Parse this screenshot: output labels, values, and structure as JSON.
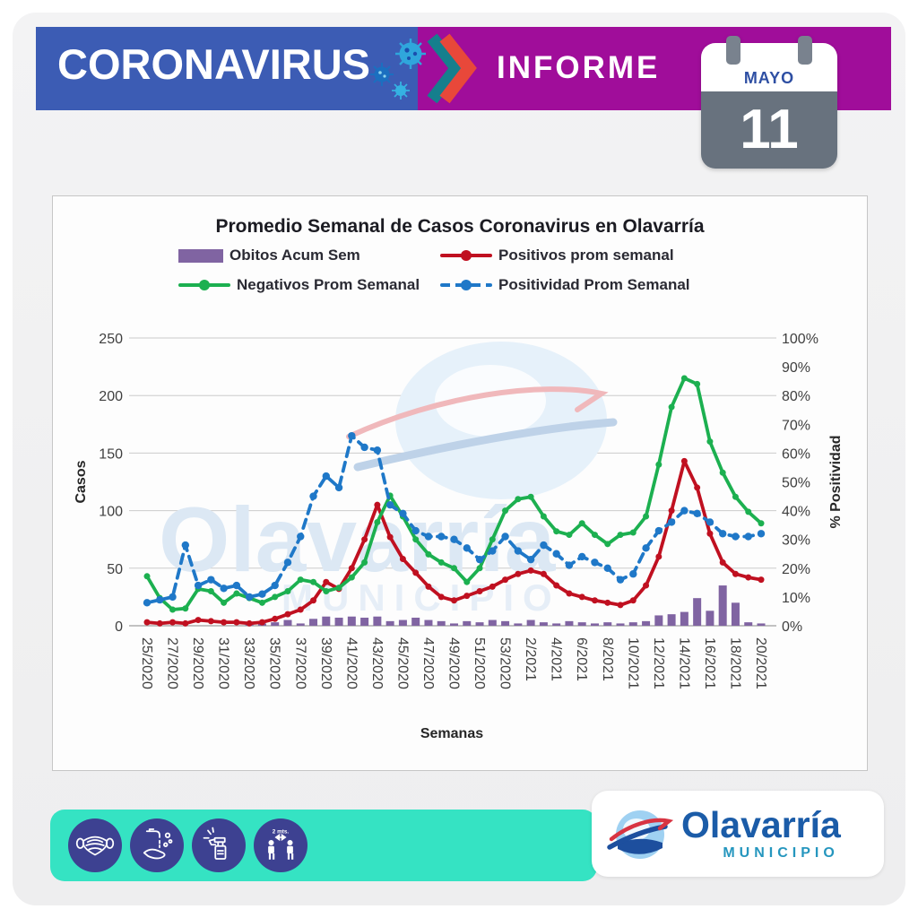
{
  "header": {
    "brand": "CORONAVIRUS",
    "report_label": "INFORME",
    "calendar": {
      "month": "MAYO",
      "day": "11"
    }
  },
  "colors": {
    "header_blue": "#3c5cb4",
    "header_purple": "#a00d9a",
    "chevron_teal": "#157f8d",
    "chevron_red": "#e8483a",
    "calendar_gray": "#68727e",
    "footer_teal": "#35e3c3",
    "icon_navy": "#3d4191",
    "logo_blue": "#1b5ca8",
    "logo_teal": "#2596be"
  },
  "chart_data": {
    "type": "bar+line combo",
    "title": "Promedio Semanal de Casos Coronavirus en Olavarría",
    "xlabel": "Semanas",
    "ylabel_left": "Casos",
    "ylabel_right": "% Positividad",
    "ylim_left": [
      0,
      250
    ],
    "yticks_left": [
      0,
      50,
      100,
      150,
      200,
      250
    ],
    "ylim_right": [
      0,
      100
    ],
    "yticks_right": [
      "0%",
      "10%",
      "20%",
      "30%",
      "40%",
      "50%",
      "60%",
      "70%",
      "80%",
      "90%",
      "100%"
    ],
    "grid": true,
    "legend_position": "top",
    "x_tick_every": 2,
    "categories": [
      "25/2020",
      "26/2020",
      "27/2020",
      "28/2020",
      "29/2020",
      "30/2020",
      "31/2020",
      "32/2020",
      "33/2020",
      "34/2020",
      "35/2020",
      "36/2020",
      "37/2020",
      "38/2020",
      "39/2020",
      "40/2020",
      "41/2020",
      "42/2020",
      "43/2020",
      "44/2020",
      "45/2020",
      "46/2020",
      "47/2020",
      "48/2020",
      "49/2020",
      "50/2020",
      "51/2020",
      "52/2020",
      "53/2020",
      "1/2021",
      "2/2021",
      "3/2021",
      "4/2021",
      "5/2021",
      "6/2021",
      "7/2021",
      "8/2021",
      "9/2021",
      "10/2021",
      "11/2021",
      "12/2021",
      "13/2021",
      "14/2021",
      "15/2021",
      "16/2021",
      "17/2021",
      "18/2021",
      "19/2021",
      "20/2021"
    ],
    "series": [
      {
        "name": "Obitos Acum Sem",
        "type": "bar",
        "axis": "left",
        "color": "#8064a2",
        "values": [
          0,
          0,
          0,
          0,
          0,
          0,
          0,
          0,
          1,
          2,
          3,
          5,
          2,
          6,
          8,
          7,
          8,
          7,
          8,
          4,
          5,
          7,
          5,
          4,
          2,
          4,
          3,
          5,
          4,
          2,
          5,
          3,
          2,
          4,
          3,
          2,
          3,
          2,
          3,
          4,
          9,
          10,
          12,
          24,
          13,
          35,
          20,
          3,
          2
        ]
      },
      {
        "name": "Positivos prom semanal",
        "type": "line",
        "axis": "left",
        "color": "#c01020",
        "values": [
          3,
          2,
          3,
          2,
          5,
          4,
          3,
          3,
          2,
          3,
          6,
          10,
          14,
          22,
          38,
          32,
          50,
          75,
          105,
          77,
          58,
          46,
          34,
          25,
          22,
          26,
          30,
          34,
          40,
          45,
          48,
          45,
          35,
          28,
          25,
          22,
          20,
          18,
          22,
          35,
          60,
          100,
          143,
          120,
          80,
          55,
          45,
          42,
          40
        ]
      },
      {
        "name": "Negativos Prom Semanal",
        "type": "line",
        "axis": "left",
        "color": "#1cb050",
        "values": [
          43,
          24,
          14,
          15,
          32,
          30,
          20,
          28,
          24,
          20,
          25,
          30,
          40,
          38,
          30,
          33,
          42,
          55,
          90,
          113,
          95,
          75,
          62,
          55,
          50,
          38,
          50,
          75,
          100,
          110,
          112,
          95,
          82,
          79,
          89,
          79,
          71,
          79,
          81,
          95,
          140,
          190,
          215,
          210,
          160,
          133,
          112,
          99,
          89
        ]
      },
      {
        "name": "Positividad Prom Semanal",
        "type": "line-dashed",
        "axis": "right",
        "color": "#1f78c8",
        "values": [
          8,
          9,
          10,
          28,
          14,
          16,
          13,
          14,
          10,
          11,
          14,
          22,
          31,
          45,
          52,
          48,
          66,
          62,
          61,
          42,
          39,
          33,
          31,
          31,
          30,
          27,
          23,
          26,
          31,
          26,
          23,
          28,
          25,
          21,
          24,
          22,
          20,
          16,
          18,
          27,
          33,
          36,
          40,
          39,
          36,
          32,
          31,
          31,
          32
        ]
      }
    ]
  },
  "watermark": {
    "text": "Olavarría",
    "sub": "MUNICIPIO"
  },
  "footer": {
    "icons": [
      "face-mask",
      "hand-washing",
      "disinfectant-spray",
      "social-distance"
    ],
    "distance_label": "2 mts.",
    "logo": {
      "name": "Olavarría",
      "sub": "MUNICIPIO"
    }
  }
}
